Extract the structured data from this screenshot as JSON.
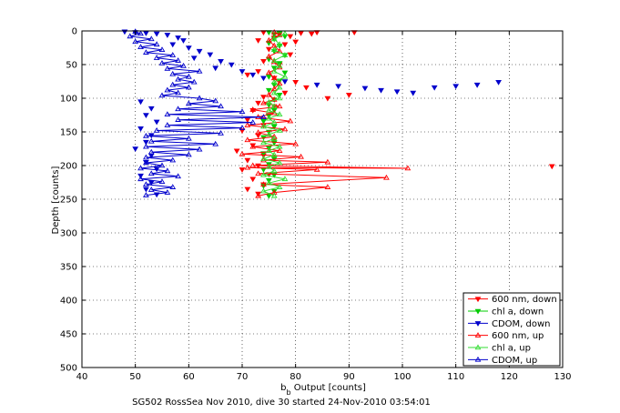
{
  "chart_data": {
    "type": "scatter",
    "title": "",
    "xlabel_main": "b",
    "xlabel_sub": "b",
    "xlabel_rest": " Output [counts]",
    "ylabel": "Depth [counts]",
    "caption": "SG502 RossSea Nov 2010, dive 30 started 24-Nov-2010 03:54:01",
    "xlim": [
      40,
      130
    ],
    "ylim": [
      0,
      500
    ],
    "y_reversed": true,
    "grid": true,
    "legend_placement": "bottom-right",
    "xticks": [
      "40",
      "50",
      "60",
      "70",
      "80",
      "90",
      "100",
      "110",
      "120",
      "130"
    ],
    "yticks": [
      "0",
      "50",
      "100",
      "150",
      "200",
      "250",
      "300",
      "350",
      "400",
      "450",
      "500"
    ],
    "series": [
      {
        "name": "600 nm, down",
        "color": "#ff0000",
        "marker": "triangle-down",
        "line": false,
        "points": [
          [
            74,
            2
          ],
          [
            77,
            5
          ],
          [
            81,
            3
          ],
          [
            84,
            2
          ],
          [
            91,
            2
          ],
          [
            76,
            10
          ],
          [
            79,
            8
          ],
          [
            83,
            4
          ],
          [
            73,
            14
          ],
          [
            78,
            20
          ],
          [
            80,
            16
          ],
          [
            75,
            27
          ],
          [
            79,
            35
          ],
          [
            74,
            45
          ],
          [
            77,
            50
          ],
          [
            73,
            60
          ],
          [
            71,
            65
          ],
          [
            76,
            70
          ],
          [
            80,
            76
          ],
          [
            82,
            84
          ],
          [
            78,
            92
          ],
          [
            74,
            98
          ],
          [
            86,
            100
          ],
          [
            90,
            95
          ],
          [
            73,
            107
          ],
          [
            76,
            112
          ],
          [
            72,
            118
          ],
          [
            75,
            125
          ],
          [
            71,
            132
          ],
          [
            74,
            140
          ],
          [
            70,
            148
          ],
          [
            73,
            155
          ],
          [
            76,
            162
          ],
          [
            72,
            170
          ],
          [
            69,
            178
          ],
          [
            74,
            185
          ],
          [
            71,
            192
          ],
          [
            73,
            200
          ],
          [
            70,
            206
          ],
          [
            75,
            213
          ],
          [
            72,
            220
          ],
          [
            74,
            228
          ],
          [
            71,
            235
          ],
          [
            73,
            242
          ],
          [
            128,
            201
          ]
        ]
      },
      {
        "name": "chl a, down",
        "color": "#00cc00",
        "marker": "triangle-down",
        "line": false,
        "points": [
          [
            75,
            2
          ],
          [
            76,
            5
          ],
          [
            77,
            3
          ],
          [
            78,
            8
          ],
          [
            76,
            12
          ],
          [
            75,
            18
          ],
          [
            77,
            22
          ],
          [
            76,
            30
          ],
          [
            78,
            36
          ],
          [
            75,
            42
          ],
          [
            77,
            48
          ],
          [
            76,
            55
          ],
          [
            78,
            62
          ],
          [
            75,
            68
          ],
          [
            77,
            74
          ],
          [
            76,
            80
          ],
          [
            75,
            88
          ],
          [
            77,
            95
          ],
          [
            76,
            102
          ],
          [
            75,
            110
          ],
          [
            76,
            118
          ],
          [
            75,
            126
          ],
          [
            74,
            134
          ],
          [
            76,
            142
          ],
          [
            75,
            150
          ],
          [
            74,
            158
          ],
          [
            76,
            166
          ],
          [
            75,
            174
          ],
          [
            74,
            182
          ],
          [
            76,
            190
          ],
          [
            75,
            198
          ],
          [
            74,
            206
          ],
          [
            76,
            214
          ],
          [
            75,
            222
          ],
          [
            74,
            230
          ],
          [
            76,
            238
          ],
          [
            75,
            245
          ]
        ]
      },
      {
        "name": "CDOM, down",
        "color": "#0000cc",
        "marker": "triangle-down",
        "line": false,
        "points": [
          [
            48,
            1
          ],
          [
            50,
            2
          ],
          [
            52,
            3
          ],
          [
            54,
            4
          ],
          [
            56,
            6
          ],
          [
            58,
            10
          ],
          [
            59,
            14
          ],
          [
            57,
            20
          ],
          [
            60,
            25
          ],
          [
            62,
            30
          ],
          [
            64,
            35
          ],
          [
            61,
            40
          ],
          [
            66,
            45
          ],
          [
            68,
            50
          ],
          [
            65,
            55
          ],
          [
            70,
            60
          ],
          [
            72,
            65
          ],
          [
            74,
            70
          ],
          [
            78,
            75
          ],
          [
            84,
            80
          ],
          [
            88,
            82
          ],
          [
            93,
            85
          ],
          [
            96,
            88
          ],
          [
            99,
            90
          ],
          [
            102,
            92
          ],
          [
            106,
            84
          ],
          [
            110,
            82
          ],
          [
            114,
            80
          ],
          [
            118,
            76
          ],
          [
            51,
            105
          ],
          [
            53,
            115
          ],
          [
            52,
            125
          ],
          [
            54,
            135
          ],
          [
            51,
            145
          ],
          [
            53,
            155
          ],
          [
            52,
            165
          ],
          [
            50,
            175
          ],
          [
            53,
            185
          ],
          [
            52,
            195
          ],
          [
            54,
            205
          ],
          [
            51,
            215
          ],
          [
            53,
            225
          ],
          [
            52,
            235
          ],
          [
            54,
            243
          ]
        ]
      },
      {
        "name": "600 nm, up",
        "color": "#ff0000",
        "marker": "triangle-up",
        "line": true,
        "points": [
          [
            73,
            245
          ],
          [
            76,
            240
          ],
          [
            86,
            232
          ],
          [
            74,
            228
          ],
          [
            97,
            218
          ],
          [
            73,
            212
          ],
          [
            84,
            206
          ],
          [
            71,
            203
          ],
          [
            101,
            204
          ],
          [
            72,
            200
          ],
          [
            86,
            195
          ],
          [
            74,
            192
          ],
          [
            81,
            187
          ],
          [
            70,
            183
          ],
          [
            77,
            178
          ],
          [
            72,
            172
          ],
          [
            80,
            168
          ],
          [
            71,
            162
          ],
          [
            76,
            157
          ],
          [
            73,
            151
          ],
          [
            78,
            146
          ],
          [
            71,
            140
          ],
          [
            79,
            134
          ],
          [
            73,
            128
          ],
          [
            76,
            122
          ],
          [
            72,
            117
          ],
          [
            77,
            112
          ],
          [
            74,
            107
          ],
          [
            76,
            102
          ],
          [
            75,
            95
          ],
          [
            76,
            86
          ],
          [
            77,
            78
          ],
          [
            76,
            70
          ],
          [
            75,
            62
          ],
          [
            77,
            54
          ],
          [
            76,
            46
          ],
          [
            75,
            38
          ],
          [
            77,
            30
          ],
          [
            76,
            22
          ],
          [
            75,
            14
          ],
          [
            77,
            6
          ],
          [
            76,
            2
          ]
        ]
      },
      {
        "name": "chl a, up",
        "color": "#33dd33",
        "marker": "triangle-up",
        "line": true,
        "points": [
          [
            76,
            245
          ],
          [
            74,
            238
          ],
          [
            77,
            232
          ],
          [
            75,
            226
          ],
          [
            78,
            220
          ],
          [
            74,
            214
          ],
          [
            76,
            208
          ],
          [
            75,
            202
          ],
          [
            77,
            196
          ],
          [
            74,
            190
          ],
          [
            76,
            184
          ],
          [
            75,
            178
          ],
          [
            77,
            172
          ],
          [
            74,
            166
          ],
          [
            76,
            160
          ],
          [
            75,
            154
          ],
          [
            77,
            148
          ],
          [
            74,
            142
          ],
          [
            76,
            136
          ],
          [
            75,
            130
          ],
          [
            77,
            124
          ],
          [
            75,
            118
          ],
          [
            76,
            112
          ],
          [
            75,
            106
          ],
          [
            77,
            100
          ],
          [
            76,
            92
          ],
          [
            77,
            84
          ],
          [
            76,
            76
          ],
          [
            78,
            68
          ],
          [
            76,
            60
          ],
          [
            77,
            52
          ],
          [
            76,
            44
          ],
          [
            78,
            36
          ],
          [
            76,
            28
          ],
          [
            77,
            20
          ],
          [
            76,
            12
          ],
          [
            78,
            4
          ]
        ]
      },
      {
        "name": "CDOM, up",
        "color": "#0000cc",
        "marker": "triangle-up",
        "line": true,
        "points": [
          [
            52,
            244
          ],
          [
            56,
            240
          ],
          [
            53,
            236
          ],
          [
            57,
            232
          ],
          [
            52,
            228
          ],
          [
            55,
            224
          ],
          [
            51,
            220
          ],
          [
            58,
            216
          ],
          [
            53,
            212
          ],
          [
            56,
            208
          ],
          [
            51,
            204
          ],
          [
            55,
            200
          ],
          [
            52,
            196
          ],
          [
            57,
            192
          ],
          [
            52,
            188
          ],
          [
            60,
            184
          ],
          [
            53,
            180
          ],
          [
            62,
            176
          ],
          [
            52,
            172
          ],
          [
            65,
            168
          ],
          [
            53,
            164
          ],
          [
            60,
            160
          ],
          [
            52,
            156
          ],
          [
            66,
            152
          ],
          [
            54,
            148
          ],
          [
            70,
            144
          ],
          [
            56,
            140
          ],
          [
            72,
            136
          ],
          [
            58,
            132
          ],
          [
            74,
            128
          ],
          [
            56,
            124
          ],
          [
            70,
            120
          ],
          [
            58,
            116
          ],
          [
            66,
            112
          ],
          [
            60,
            108
          ],
          [
            65,
            104
          ],
          [
            62,
            100
          ],
          [
            55,
            96
          ],
          [
            58,
            92
          ],
          [
            56,
            88
          ],
          [
            60,
            84
          ],
          [
            57,
            80
          ],
          [
            61,
            76
          ],
          [
            58,
            72
          ],
          [
            60,
            68
          ],
          [
            57,
            64
          ],
          [
            62,
            60
          ],
          [
            56,
            56
          ],
          [
            59,
            52
          ],
          [
            55,
            48
          ],
          [
            58,
            44
          ],
          [
            54,
            40
          ],
          [
            57,
            36
          ],
          [
            52,
            32
          ],
          [
            55,
            28
          ],
          [
            51,
            24
          ],
          [
            54,
            20
          ],
          [
            50,
            16
          ],
          [
            53,
            12
          ],
          [
            49,
            8
          ],
          [
            51,
            4
          ],
          [
            50,
            1
          ]
        ]
      }
    ]
  }
}
